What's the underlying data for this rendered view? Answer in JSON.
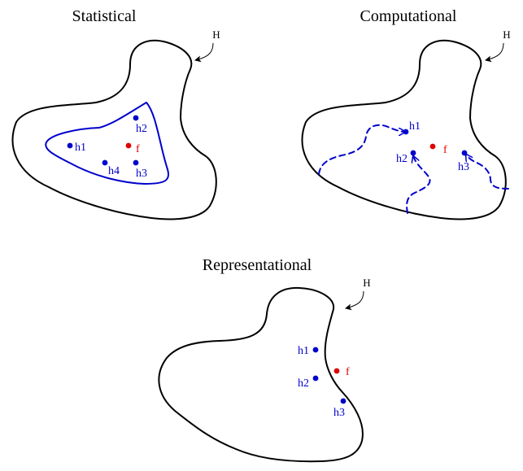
{
  "colors": {
    "outline": "#000000",
    "hypothesis": "#0000cc",
    "target": "#e00000"
  },
  "panels": {
    "statistical": {
      "title": "Statistical",
      "space_label": "H",
      "target_label": "f",
      "hypotheses": [
        "h1",
        "h2",
        "h3",
        "h4"
      ]
    },
    "computational": {
      "title": "Computational",
      "space_label": "H",
      "target_label": "f",
      "hypotheses": [
        "h1",
        "h2",
        "h3"
      ]
    },
    "representational": {
      "title": "Representational",
      "space_label": "H",
      "target_label": "f",
      "hypotheses": [
        "h1",
        "h2",
        "h3"
      ]
    }
  }
}
